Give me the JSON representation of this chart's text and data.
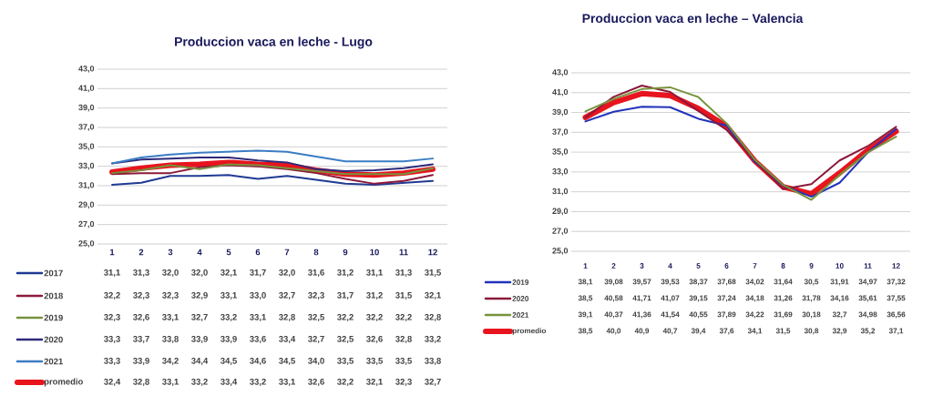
{
  "chart_data": [
    {
      "type": "line",
      "title": "Produccion vaca en leche - Lugo",
      "categories": [
        "1",
        "2",
        "3",
        "4",
        "5",
        "6",
        "7",
        "8",
        "9",
        "10",
        "11",
        "12"
      ],
      "series": [
        {
          "name": "2017",
          "color": "#1f3a93",
          "values": [
            31.1,
            31.3,
            32.0,
            32.0,
            32.1,
            31.7,
            32.0,
            31.6,
            31.2,
            31.1,
            31.3,
            31.5
          ],
          "value_labels": [
            "31,1",
            "31,3",
            "32,0",
            "32,0",
            "32,1",
            "31,7",
            "32,0",
            "31,6",
            "31,2",
            "31,1",
            "31,3",
            "31,5"
          ]
        },
        {
          "name": "2018",
          "color": "#8b1a3a",
          "values": [
            32.2,
            32.3,
            32.3,
            32.9,
            33.1,
            33.0,
            32.7,
            32.3,
            31.7,
            31.2,
            31.5,
            32.1
          ],
          "value_labels": [
            "32,2",
            "32,3",
            "32,3",
            "32,9",
            "33,1",
            "33,0",
            "32,7",
            "32,3",
            "31,7",
            "31,2",
            "31,5",
            "32,1"
          ]
        },
        {
          "name": "2019",
          "color": "#77933c",
          "values": [
            32.3,
            32.6,
            33.1,
            32.7,
            33.2,
            33.1,
            32.8,
            32.5,
            32.2,
            32.2,
            32.2,
            32.8
          ],
          "value_labels": [
            "32,3",
            "32,6",
            "33,1",
            "32,7",
            "33,2",
            "33,1",
            "32,8",
            "32,5",
            "32,2",
            "32,2",
            "32,2",
            "32,8"
          ]
        },
        {
          "name": "2020",
          "color": "#2e2a7a",
          "values": [
            33.3,
            33.7,
            33.8,
            33.9,
            33.9,
            33.6,
            33.4,
            32.7,
            32.5,
            32.6,
            32.8,
            33.2
          ],
          "value_labels": [
            "33,3",
            "33,7",
            "33,8",
            "33,9",
            "33,9",
            "33,6",
            "33,4",
            "32,7",
            "32,5",
            "32,6",
            "32,8",
            "33,2"
          ]
        },
        {
          "name": "2021",
          "color": "#3b7dc4",
          "values": [
            33.3,
            33.9,
            34.2,
            34.4,
            34.5,
            34.6,
            34.5,
            34.0,
            33.5,
            33.5,
            33.5,
            33.8
          ],
          "value_labels": [
            "33,3",
            "33,9",
            "34,2",
            "34,4",
            "34,5",
            "34,6",
            "34,5",
            "34,0",
            "33,5",
            "33,5",
            "33,5",
            "33,8"
          ]
        },
        {
          "name": "promedio",
          "color": "#e8141e",
          "values": [
            32.4,
            32.8,
            33.1,
            33.2,
            33.4,
            33.2,
            33.1,
            32.6,
            32.2,
            32.1,
            32.3,
            32.7
          ],
          "value_labels": [
            "32,4",
            "32,8",
            "33,1",
            "33,2",
            "33,4",
            "33,2",
            "33,1",
            "32,6",
            "32,2",
            "32,1",
            "32,3",
            "32,7"
          ]
        }
      ],
      "ylim": [
        25,
        43
      ],
      "yticks": [
        {
          "value": 25,
          "label": "25,0"
        },
        {
          "value": 27,
          "label": "27,0"
        },
        {
          "value": 29,
          "label": "29,0"
        },
        {
          "value": 31,
          "label": "31,0"
        },
        {
          "value": 33,
          "label": "33,0"
        },
        {
          "value": 35,
          "label": "35,0"
        },
        {
          "value": 37,
          "label": "37,0"
        },
        {
          "value": 39,
          "label": "39,0"
        },
        {
          "value": 41,
          "label": "41,0"
        },
        {
          "value": 43,
          "label": "43,0"
        }
      ],
      "grid": "y",
      "legend": "bottom"
    },
    {
      "type": "line",
      "title": "Produccion vaca en leche – Valencia",
      "categories": [
        "1",
        "2",
        "3",
        "4",
        "5",
        "6",
        "7",
        "8",
        "9",
        "10",
        "11",
        "12"
      ],
      "series": [
        {
          "name": "2019",
          "color": "#2233bb",
          "values": [
            38.1,
            39.08,
            39.57,
            39.53,
            38.37,
            37.68,
            34.02,
            31.64,
            30.5,
            31.91,
            34.97,
            37.32
          ],
          "value_labels": [
            "38,1",
            "39,08",
            "39,57",
            "39,53",
            "38,37",
            "37,68",
            "34,02",
            "31,64",
            "30,5",
            "31,91",
            "34,97",
            "37,32"
          ]
        },
        {
          "name": "2020",
          "color": "#8b1a3a",
          "values": [
            38.5,
            40.58,
            41.71,
            41.07,
            39.15,
            37.24,
            34.18,
            31.26,
            31.78,
            34.16,
            35.61,
            37.55
          ],
          "value_labels": [
            "38,5",
            "40,58",
            "41,71",
            "41,07",
            "39,15",
            "37,24",
            "34,18",
            "31,26",
            "31,78",
            "34,16",
            "35,61",
            "37,55"
          ]
        },
        {
          "name": "2021",
          "color": "#77933c",
          "values": [
            39.1,
            40.37,
            41.36,
            41.54,
            40.55,
            37.89,
            34.22,
            31.69,
            30.18,
            32.7,
            34.98,
            36.56
          ],
          "value_labels": [
            "39,1",
            "40,37",
            "41,36",
            "41,54",
            "40,55",
            "37,89",
            "34,22",
            "31,69",
            "30,18",
            "32,7",
            "34,98",
            "36,56"
          ]
        },
        {
          "name": "promedio",
          "color": "#e8141e",
          "values": [
            38.5,
            40.0,
            40.9,
            40.7,
            39.4,
            37.6,
            34.1,
            31.5,
            30.8,
            32.9,
            35.2,
            37.1
          ],
          "value_labels": [
            "38,5",
            "40,0",
            "40,9",
            "40,7",
            "39,4",
            "37,6",
            "34,1",
            "31,5",
            "30,8",
            "32,9",
            "35,2",
            "37,1"
          ]
        }
      ],
      "ylim": [
        25,
        43
      ],
      "yticks": [
        {
          "value": 25,
          "label": "25,0"
        },
        {
          "value": 27,
          "label": "27,0"
        },
        {
          "value": 29,
          "label": "29,0"
        },
        {
          "value": 31,
          "label": "31,0"
        },
        {
          "value": 33,
          "label": "33,0"
        },
        {
          "value": 35,
          "label": "35,0"
        },
        {
          "value": 37,
          "label": "37,0"
        },
        {
          "value": 39,
          "label": "39,0"
        },
        {
          "value": 41,
          "label": "41,0"
        },
        {
          "value": 43,
          "label": "43,0"
        }
      ],
      "grid": "y",
      "legend": "bottom"
    }
  ]
}
